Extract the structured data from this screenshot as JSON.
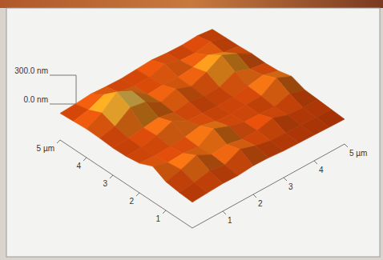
{
  "chart_data": {
    "type": "surface",
    "x": [
      0,
      0.5,
      1,
      1.5,
      2,
      2.5,
      3,
      3.5,
      4,
      4.5,
      5
    ],
    "y": [
      0,
      0.5,
      1,
      1.5,
      2,
      2.5,
      3,
      3.5,
      4,
      4.5,
      5
    ],
    "z": [
      [
        60,
        70,
        80,
        75,
        90,
        85,
        70,
        65,
        60,
        55,
        50
      ],
      [
        70,
        85,
        120,
        95,
        170,
        120,
        85,
        80,
        70,
        65,
        60
      ],
      [
        90,
        130,
        190,
        110,
        130,
        95,
        100,
        140,
        85,
        75,
        70
      ],
      [
        160,
        110,
        120,
        100,
        200,
        140,
        95,
        90,
        80,
        130,
        80
      ],
      [
        100,
        90,
        95,
        110,
        140,
        100,
        85,
        95,
        100,
        200,
        130
      ],
      [
        80,
        85,
        120,
        180,
        100,
        90,
        80,
        85,
        110,
        140,
        95
      ],
      [
        75,
        90,
        110,
        130,
        95,
        120,
        90,
        95,
        170,
        110,
        85
      ],
      [
        85,
        120,
        230,
        200,
        110,
        160,
        100,
        160,
        250,
        180,
        90
      ],
      [
        90,
        170,
        300,
        220,
        100,
        110,
        105,
        120,
        160,
        100,
        80
      ],
      [
        80,
        110,
        180,
        120,
        95,
        100,
        150,
        100,
        90,
        120,
        75
      ],
      [
        70,
        80,
        95,
        85,
        80,
        90,
        100,
        85,
        80,
        90,
        70
      ]
    ],
    "xlim": [
      0,
      5
    ],
    "ylim": [
      0,
      5
    ],
    "zlim": [
      0,
      300
    ],
    "xticks": [
      1,
      2,
      3,
      4,
      {
        "value": 5,
        "label": "5 µm"
      }
    ],
    "yticks": [
      1,
      2,
      3,
      4,
      {
        "value": 5,
        "label": "5 µm"
      }
    ],
    "zticks": [
      {
        "value": 0,
        "label": "0.0 nm"
      },
      {
        "value": 300,
        "label": "300.0 nm"
      }
    ]
  }
}
